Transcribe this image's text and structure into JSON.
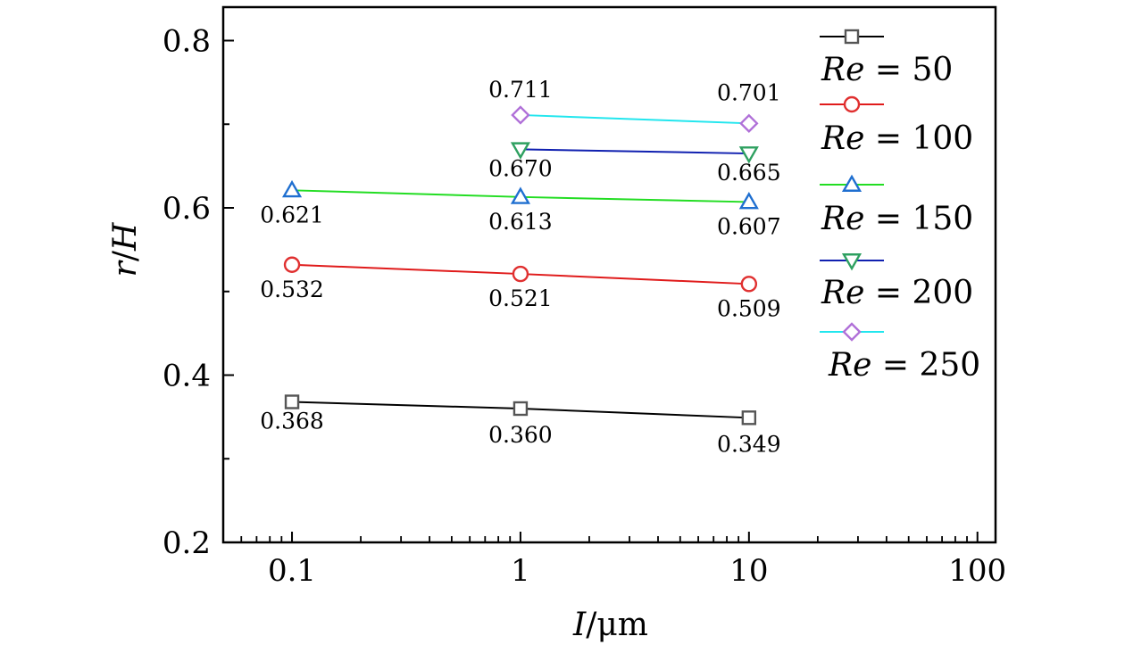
{
  "chart_data": {
    "type": "line",
    "xlabel": {
      "var": "I",
      "unit": "/μm"
    },
    "ylabel": {
      "var": "r",
      "sep": "/",
      "var2": "H"
    },
    "x_scale": "log",
    "xlim": [
      0.05,
      120
    ],
    "ylim": [
      0.2,
      0.84
    ],
    "x_ticks": [
      0.1,
      1,
      10,
      100
    ],
    "x_tick_labels": [
      "0.1",
      "1",
      "10",
      "100"
    ],
    "y_ticks": [
      0.2,
      0.4,
      0.6,
      0.8
    ],
    "y_tick_labels": [
      "0.2",
      "0.4",
      "0.6",
      "0.8"
    ],
    "grid": false,
    "legend_placement": "right",
    "series": [
      {
        "name": "Re = 50",
        "label_var": "Re",
        "label_val": "= 50",
        "line_color": "#000000",
        "marker_color": "#555555",
        "marker": "square",
        "points": [
          {
            "x": 0.1,
            "y": 0.368,
            "label": "0.368"
          },
          {
            "x": 1,
            "y": 0.36,
            "label": "0.360"
          },
          {
            "x": 10,
            "y": 0.349,
            "label": "0.349"
          }
        ]
      },
      {
        "name": "Re = 100",
        "label_var": "Re",
        "label_val": "= 100",
        "line_color": "#e01b1b",
        "marker_color": "#e03030",
        "marker": "circle",
        "points": [
          {
            "x": 0.1,
            "y": 0.532,
            "label": "0.532"
          },
          {
            "x": 1,
            "y": 0.521,
            "label": "0.521"
          },
          {
            "x": 10,
            "y": 0.509,
            "label": "0.509"
          }
        ]
      },
      {
        "name": "Re = 150",
        "label_var": "Re",
        "label_val": "= 150",
        "line_color": "#22dd22",
        "marker_color": "#1f6fd0",
        "marker": "triangle-up",
        "points": [
          {
            "x": 0.1,
            "y": 0.621,
            "label": "0.621"
          },
          {
            "x": 1,
            "y": 0.613,
            "label": "0.613"
          },
          {
            "x": 10,
            "y": 0.607,
            "label": "0.607"
          }
        ]
      },
      {
        "name": "Re = 200",
        "label_var": "Re",
        "label_val": "= 200",
        "line_color": "#1020b0",
        "marker_color": "#2ea060",
        "marker": "triangle-down",
        "points": [
          {
            "x": 1,
            "y": 0.67,
            "label": "0.670"
          },
          {
            "x": 10,
            "y": 0.665,
            "label": "0.665"
          }
        ]
      },
      {
        "name": "Re = 250",
        "label_var": "Re",
        "label_val": "= 250",
        "line_color": "#22e6ee",
        "marker_color": "#b070d8",
        "marker": "diamond",
        "points": [
          {
            "x": 1,
            "y": 0.711,
            "label": "0.711"
          },
          {
            "x": 10,
            "y": 0.701,
            "label": "0.701"
          }
        ]
      }
    ]
  }
}
